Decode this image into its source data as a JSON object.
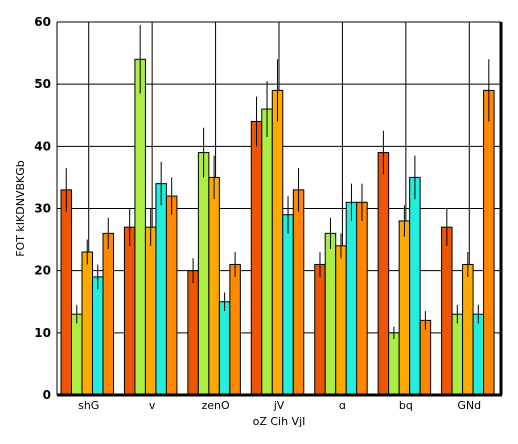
{
  "chart_data": {
    "type": "bar",
    "title": "",
    "xlabel": "oZ Cih  VjI",
    "ylabel": "FOT kIKDNVBKGb",
    "categories": [
      "shG",
      "v",
      "zenO",
      "jV",
      "ɑ",
      "bq",
      "GNd"
    ],
    "ylim": [
      0,
      60
    ],
    "yticks": [
      0,
      10,
      20,
      30,
      40,
      50,
      60
    ],
    "grid": true,
    "series": [
      {
        "color": "#ee5500",
        "values": [
          33,
          27,
          20,
          44,
          21,
          39,
          27
        ],
        "errors": [
          3.5,
          3,
          2,
          4,
          2,
          3.5,
          3
        ]
      },
      {
        "color": "#aaee44",
        "values": [
          13,
          54,
          39,
          46,
          26,
          10,
          13
        ],
        "errors": [
          1.5,
          5.5,
          4,
          4.5,
          2.5,
          1,
          1.5
        ]
      },
      {
        "color": "#ffaa00",
        "values": [
          23,
          27,
          35,
          49,
          24,
          28,
          21
        ],
        "errors": [
          2,
          3,
          3.5,
          5,
          2,
          2.5,
          2
        ]
      },
      {
        "color": "#22eedd",
        "values": [
          19,
          34,
          15,
          29,
          31,
          35,
          13
        ],
        "errors": [
          2,
          3.5,
          1.5,
          3,
          3,
          3.5,
          1.5
        ]
      },
      {
        "color": "#ff8800",
        "values": [
          26,
          32,
          21,
          33,
          31,
          12,
          49
        ],
        "errors": [
          2.5,
          3,
          2,
          3.5,
          3,
          1.5,
          5
        ]
      }
    ]
  }
}
